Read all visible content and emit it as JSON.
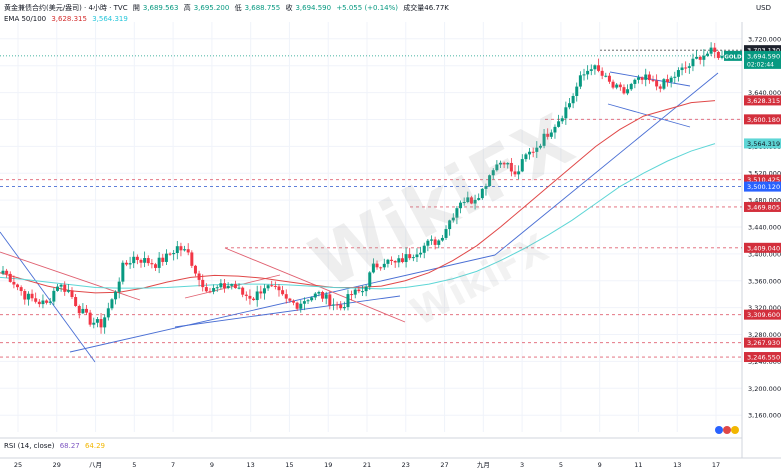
{
  "header": {
    "symbol_line": "黄金兼债合约(美元/盎司) · 4小時 · TVC",
    "open_label": "開",
    "open_value": "3,689.563",
    "high_label": "高",
    "high_value": "3,695.200",
    "low_label": "低",
    "low_value": "3,688.755",
    "close_label": "收",
    "close_value": "3,694.590",
    "change": "+5.055 (+0.14%)",
    "volume": "成交量46.77K",
    "ema_label": "EMA 50/100",
    "ema50_value": "3,628.315",
    "ema100_value": "3,564.319",
    "currency": "USD"
  },
  "rsi": {
    "label": "RSI (14, close)",
    "value1": "68.27",
    "value2": "64.29"
  },
  "watermark": {
    "text": "WikiFX",
    "text2": "WikiFX"
  },
  "colors": {
    "up": "#089981",
    "down": "#f23645",
    "ema50": "#e04848",
    "ema100": "#5ed6d6",
    "trend_blue": "#4a6fd4",
    "level_red": "#e06070",
    "current": "#089981"
  },
  "chart_data": {
    "type": "line",
    "title": "",
    "ylim": [
      3135,
      3745
    ],
    "y_ticks": [
      "3,720.000",
      "3,680.000",
      "3,640.000",
      "3,600.000",
      "3,560.000",
      "3,520.000",
      "3,480.000",
      "3,440.000",
      "3,400.000",
      "3,360.000",
      "3,320.000",
      "3,280.000",
      "3,240.000",
      "3,200.000",
      "3,160.000"
    ],
    "x_ticks": [
      "25",
      "29",
      "八月",
      "5",
      "7",
      "9",
      "13",
      "15",
      "19",
      "21",
      "23",
      "27",
      "九月",
      "3",
      "5",
      "9",
      "11",
      "13",
      "17"
    ],
    "price_labels": [
      {
        "text": "3,703.130",
        "value": 3703.13,
        "kind": "dark",
        "line": "dotted"
      },
      {
        "text": "3,694.590",
        "value": 3694.59,
        "kind": "current",
        "sub": "GOLD",
        "countdown": "02:02:44"
      },
      {
        "text": "3,628.315",
        "value": 3628.315,
        "kind": "red"
      },
      {
        "text": "3,600.180",
        "value": 3600.18,
        "kind": "red",
        "line": "dashed"
      },
      {
        "text": "3,564.319",
        "value": 3564.319,
        "kind": "cyan"
      },
      {
        "text": "3,510.425",
        "value": 3510.425,
        "kind": "red",
        "line": "dashed"
      },
      {
        "text": "3,500.120",
        "value": 3500.12,
        "kind": "blue",
        "line": "dashed"
      },
      {
        "text": "3,469.805",
        "value": 3469.805,
        "kind": "red",
        "line": "dashed"
      },
      {
        "text": "3,409.040",
        "value": 3409.04,
        "kind": "red",
        "line": "dashed"
      },
      {
        "text": "3,309.600",
        "value": 3309.6,
        "kind": "red",
        "line": "dashed"
      },
      {
        "text": "3,267.930",
        "value": 3267.93,
        "kind": "red",
        "line": "dashed"
      },
      {
        "text": "3,246.550",
        "value": 3246.55,
        "kind": "red",
        "line": "dashed"
      }
    ],
    "series": [
      {
        "name": "EMA 50",
        "values": [
          3372,
          3362,
          3352,
          3345,
          3342,
          3343,
          3349,
          3358,
          3365,
          3368,
          3367,
          3364,
          3359,
          3354,
          3350,
          3350,
          3352,
          3360,
          3372,
          3390,
          3412,
          3440,
          3470,
          3500,
          3530,
          3560,
          3585,
          3605,
          3615,
          3625,
          3628
        ]
      },
      {
        "name": "EMA 100",
        "values": [
          3365,
          3362,
          3358,
          3354,
          3350,
          3349,
          3349,
          3350,
          3352,
          3354,
          3355,
          3355,
          3354,
          3352,
          3350,
          3349,
          3348,
          3350,
          3355,
          3363,
          3374,
          3390,
          3408,
          3428,
          3450,
          3475,
          3500,
          3520,
          3538,
          3553,
          3564
        ]
      }
    ],
    "close_path": [
      3375,
      3358,
      3338,
      3330,
      3325,
      3355,
      3345,
      3318,
      3300,
      3295,
      3330,
      3380,
      3395,
      3390,
      3385,
      3395,
      3410,
      3400,
      3362,
      3345,
      3350,
      3355,
      3340,
      3335,
      3352,
      3345,
      3330,
      3325,
      3335,
      3340,
      3330,
      3320,
      3340,
      3345,
      3380,
      3390,
      3385,
      3395,
      3405,
      3415,
      3420,
      3450,
      3480,
      3480,
      3495,
      3530,
      3540,
      3515,
      3545,
      3560,
      3580,
      3600,
      3625,
      3660,
      3680,
      3665,
      3648,
      3640,
      3655,
      3660,
      3650,
      3655,
      3670,
      3680,
      3695,
      3700,
      3694.59
    ]
  }
}
